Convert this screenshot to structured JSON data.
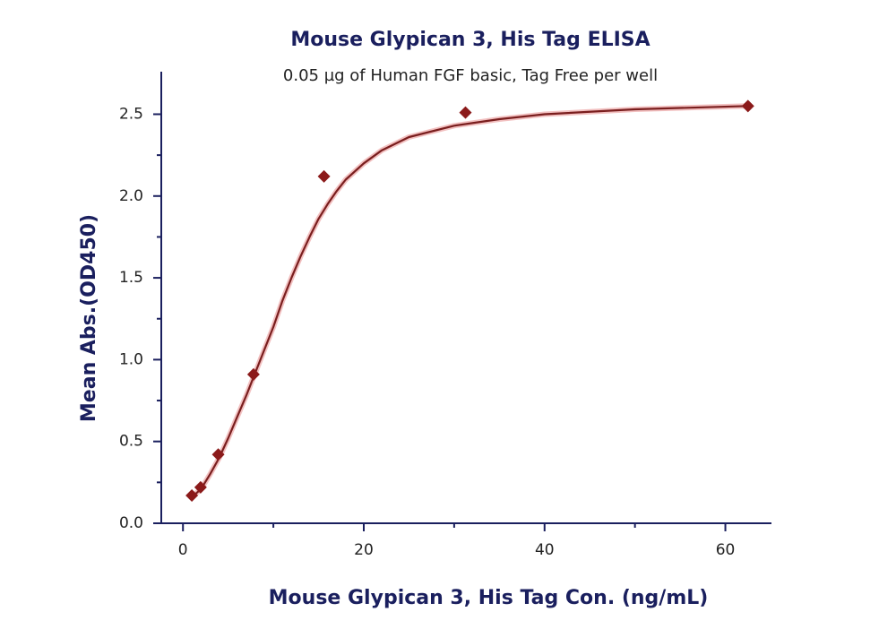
{
  "chart_data": {
    "type": "scatter",
    "title": "Mouse Glypican 3, His Tag ELISA",
    "subtitle": "0.05 µg of Human FGF basic, Tag Free per well",
    "x_label": "Mouse Glypican 3, His Tag Con. (ng/mL)",
    "y_label": "Mean Abs.(OD450)",
    "xlim": [
      -2.4,
      65
    ],
    "ylim": [
      0,
      2.76
    ],
    "xticks": [
      0,
      20,
      40,
      60
    ],
    "xminor_ticks": [
      10,
      30,
      50
    ],
    "yticks": [
      {
        "value": 0,
        "label": "0.0"
      },
      0.5,
      {
        "value": 1,
        "label": "1.0"
      },
      1.5,
      {
        "value": 2,
        "label": "2.0"
      },
      2.5
    ],
    "yminor_ticks": [
      0.25,
      0.75,
      1.25,
      1.75,
      2.25
    ],
    "series": [
      {
        "color": "#8b1a1a",
        "x": [
          0.98,
          1.95,
          3.9,
          7.8,
          15.6,
          31.25,
          62.5
        ],
        "values": [
          0.17,
          0.22,
          0.42,
          0.91,
          2.12,
          2.51,
          2.55
        ]
      }
    ],
    "fit": {
      "color": "#7a1e1e",
      "x": [
        1,
        2,
        3,
        4,
        5,
        6,
        7,
        8,
        9,
        10,
        11,
        12,
        13,
        14,
        15,
        16,
        17,
        18,
        20,
        22,
        25,
        30,
        35,
        40,
        50,
        62.5
      ],
      "values": [
        0.16,
        0.21,
        0.3,
        0.4,
        0.52,
        0.65,
        0.78,
        0.92,
        1.06,
        1.2,
        1.36,
        1.5,
        1.63,
        1.75,
        1.86,
        1.95,
        2.03,
        2.1,
        2.2,
        2.28,
        2.36,
        2.43,
        2.47,
        2.5,
        2.53,
        2.55
      ]
    }
  }
}
